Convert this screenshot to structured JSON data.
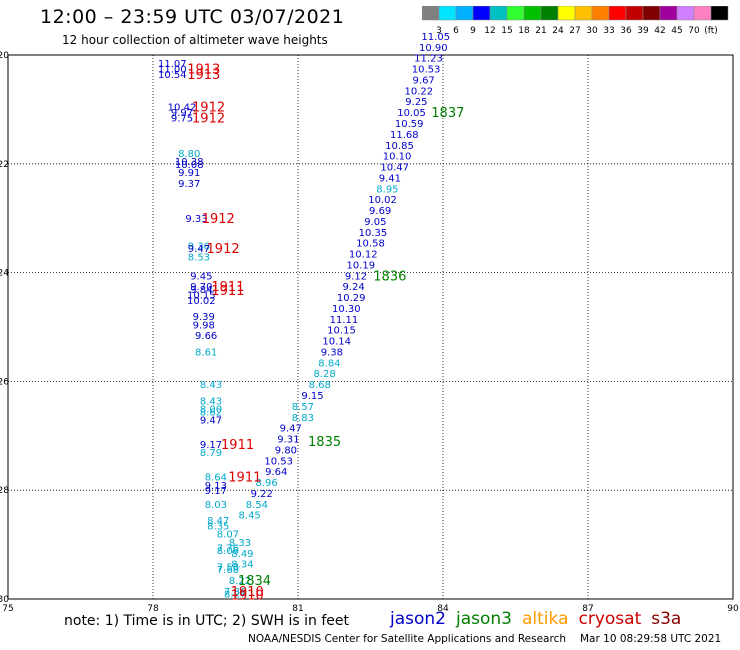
{
  "header": {
    "title": "12:00 – 23:59 UTC 03/07/2021",
    "subtitle": "12 hour collection of altimeter wave heights"
  },
  "colorbar": {
    "colors": [
      "#808080",
      "#00e5ff",
      "#00b0ff",
      "#0000ff",
      "#00c0c0",
      "#30ff30",
      "#00c000",
      "#008000",
      "#ffff00",
      "#ffc000",
      "#ff8000",
      "#ff0000",
      "#c00000",
      "#800000",
      "#a000a0",
      "#d080ff",
      "#ff80c0",
      "#000000"
    ],
    "labels": [
      "3",
      "6",
      "9",
      "12",
      "15",
      "18",
      "21",
      "24",
      "27",
      "30",
      "33",
      "36",
      "39",
      "42",
      "45",
      "70",
      "(ft)"
    ]
  },
  "footer": {
    "note": "note:  1) Time is in UTC;  2) SWH is in feet",
    "credit": "NOAA/NESDIS Center for Satellite Applications and Research",
    "timestamp": "Mar 10 08:29:58 UTC 2021"
  },
  "legend": [
    {
      "name": "jason2",
      "color": "#0000cc"
    },
    {
      "name": "jason3",
      "color": "#008000"
    },
    {
      "name": "altika",
      "color": "#ff9900"
    },
    {
      "name": "cryosat",
      "color": "#cc0000"
    },
    {
      "name": "s3a",
      "color": "#880000"
    }
  ],
  "chart_data": {
    "type": "scatter",
    "title": "12:00 – 23:59 UTC 03/07/2021",
    "subtitle": "12 hour collection of altimeter wave heights",
    "xlim": [
      75,
      90
    ],
    "ylim": [
      -30,
      -20
    ],
    "x_ticks": [
      "75",
      "78",
      "81",
      "84",
      "87",
      "90"
    ],
    "y_ticks": [
      "-20",
      "-22",
      "-24",
      "-26",
      "-28",
      "-30"
    ],
    "grid": true,
    "wave_heights": [
      {
        "x": 78.4,
        "y": -20.15,
        "v": "11.07",
        "c": "#0000cc"
      },
      {
        "x": 78.4,
        "y": -20.25,
        "v": "11.00",
        "c": "#0000cc"
      },
      {
        "x": 78.4,
        "y": -20.35,
        "v": "10.54",
        "c": "#0000cc"
      },
      {
        "x": 78.6,
        "y": -20.95,
        "v": "10.42",
        "c": "#0000cc"
      },
      {
        "x": 78.6,
        "y": -21.05,
        "v": "9.97",
        "c": "#0000cc"
      },
      {
        "x": 78.6,
        "y": -21.15,
        "v": "9.75",
        "c": "#0000cc"
      },
      {
        "x": 78.75,
        "y": -21.8,
        "v": "8.80",
        "c": "#00aacc"
      },
      {
        "x": 78.75,
        "y": -21.95,
        "v": "10.38",
        "c": "#0000cc"
      },
      {
        "x": 78.75,
        "y": -22.0,
        "v": "10.08",
        "c": "#0000cc"
      },
      {
        "x": 78.75,
        "y": -22.15,
        "v": "9.91",
        "c": "#0000cc"
      },
      {
        "x": 78.75,
        "y": -22.35,
        "v": "9.37",
        "c": "#0000cc"
      },
      {
        "x": 78.9,
        "y": -23.0,
        "v": "9.33",
        "c": "#0000cc"
      },
      {
        "x": 78.95,
        "y": -23.5,
        "v": "9.36",
        "c": "#00aacc"
      },
      {
        "x": 78.95,
        "y": -23.55,
        "v": "9.47",
        "c": "#0000cc"
      },
      {
        "x": 78.95,
        "y": -23.7,
        "v": "8.53",
        "c": "#00aacc"
      },
      {
        "x": 79.0,
        "y": -24.05,
        "v": "9.45",
        "c": "#0000cc"
      },
      {
        "x": 79.0,
        "y": -24.25,
        "v": "9.70",
        "c": "#0000cc"
      },
      {
        "x": 79.0,
        "y": -24.3,
        "v": "9.84",
        "c": "#0000cc"
      },
      {
        "x": 79.0,
        "y": -24.4,
        "v": "10.15",
        "c": "#0000cc"
      },
      {
        "x": 79.0,
        "y": -24.5,
        "v": "10.02",
        "c": "#0000cc"
      },
      {
        "x": 79.05,
        "y": -24.8,
        "v": "9.39",
        "c": "#0000cc"
      },
      {
        "x": 79.05,
        "y": -24.95,
        "v": "9.98",
        "c": "#0000cc"
      },
      {
        "x": 79.1,
        "y": -25.15,
        "v": "9.66",
        "c": "#0000cc"
      },
      {
        "x": 79.1,
        "y": -25.45,
        "v": "8.61",
        "c": "#00aacc"
      },
      {
        "x": 79.2,
        "y": -26.05,
        "v": "8.43",
        "c": "#00aacc"
      },
      {
        "x": 79.2,
        "y": -26.35,
        "v": "8.43",
        "c": "#00aacc"
      },
      {
        "x": 79.2,
        "y": -26.5,
        "v": "8.00",
        "c": "#00aacc"
      },
      {
        "x": 79.2,
        "y": -26.55,
        "v": "8.62",
        "c": "#00aacc"
      },
      {
        "x": 79.2,
        "y": -26.7,
        "v": "9.47",
        "c": "#0000cc"
      },
      {
        "x": 79.2,
        "y": -27.15,
        "v": "9.17",
        "c": "#0000cc"
      },
      {
        "x": 79.2,
        "y": -27.3,
        "v": "8.79",
        "c": "#00aacc"
      },
      {
        "x": 79.3,
        "y": -27.75,
        "v": "8.64",
        "c": "#00aacc"
      },
      {
        "x": 79.3,
        "y": -27.9,
        "v": "9.13",
        "c": "#0000cc"
      },
      {
        "x": 79.3,
        "y": -28.0,
        "v": "9.17",
        "c": "#0000cc"
      },
      {
        "x": 79.3,
        "y": -28.25,
        "v": "8.03",
        "c": "#00aacc"
      },
      {
        "x": 79.35,
        "y": -28.55,
        "v": "8.47",
        "c": "#00aacc"
      },
      {
        "x": 79.35,
        "y": -28.65,
        "v": "8.35",
        "c": "#00aacc"
      },
      {
        "x": 79.55,
        "y": -28.8,
        "v": "8.07",
        "c": "#00aacc"
      },
      {
        "x": 79.55,
        "y": -29.05,
        "v": "7.76",
        "c": "#00aacc"
      },
      {
        "x": 79.55,
        "y": -29.1,
        "v": "8.06",
        "c": "#00aacc"
      },
      {
        "x": 79.55,
        "y": -29.4,
        "v": "7.58",
        "c": "#00aacc"
      },
      {
        "x": 79.55,
        "y": -29.45,
        "v": "7.68",
        "c": "#00aacc"
      },
      {
        "x": 79.8,
        "y": -28.95,
        "v": "8.33",
        "c": "#00aacc"
      },
      {
        "x": 79.85,
        "y": -29.15,
        "v": "8.49",
        "c": "#00aacc"
      },
      {
        "x": 79.85,
        "y": -29.35,
        "v": "8.34",
        "c": "#00aacc"
      },
      {
        "x": 80.0,
        "y": -28.45,
        "v": "8.45",
        "c": "#00aacc"
      },
      {
        "x": 80.15,
        "y": -28.25,
        "v": "8.54",
        "c": "#00aacc"
      },
      {
        "x": 80.25,
        "y": -28.05,
        "v": "9.22",
        "c": "#0000cc"
      },
      {
        "x": 79.8,
        "y": -29.65,
        "v": "8.22",
        "c": "#00aacc"
      },
      {
        "x": 79.7,
        "y": -29.85,
        "v": "7.86",
        "c": "#00aacc"
      },
      {
        "x": 79.7,
        "y": -29.9,
        "v": "8.27",
        "c": "#00aacc"
      },
      {
        "x": 80.35,
        "y": -27.85,
        "v": "8.96",
        "c": "#00aacc"
      },
      {
        "x": 80.55,
        "y": -27.65,
        "v": "9.64",
        "c": "#0000cc"
      },
      {
        "x": 80.6,
        "y": -27.45,
        "v": "10.53",
        "c": "#0000cc"
      },
      {
        "x": 80.75,
        "y": -27.25,
        "v": "9.80",
        "c": "#0000cc"
      },
      {
        "x": 80.8,
        "y": -27.05,
        "v": "9.31",
        "c": "#0000cc"
      },
      {
        "x": 80.85,
        "y": -26.85,
        "v": "9.47",
        "c": "#0000cc"
      },
      {
        "x": 81.1,
        "y": -26.65,
        "v": "8.83",
        "c": "#00aacc"
      },
      {
        "x": 81.1,
        "y": -26.45,
        "v": "8.57",
        "c": "#00aacc"
      },
      {
        "x": 81.3,
        "y": -26.25,
        "v": "9.15",
        "c": "#0000cc"
      },
      {
        "x": 81.45,
        "y": -26.05,
        "v": "8.68",
        "c": "#00aacc"
      },
      {
        "x": 81.55,
        "y": -25.85,
        "v": "8.28",
        "c": "#00aacc"
      },
      {
        "x": 81.65,
        "y": -25.65,
        "v": "8.84",
        "c": "#00aacc"
      },
      {
        "x": 81.7,
        "y": -25.45,
        "v": "9.38",
        "c": "#0000cc"
      },
      {
        "x": 81.8,
        "y": -25.25,
        "v": "10.14",
        "c": "#0000cc"
      },
      {
        "x": 81.9,
        "y": -25.05,
        "v": "10.15",
        "c": "#0000cc"
      },
      {
        "x": 81.95,
        "y": -24.85,
        "v": "11.11",
        "c": "#0000cc"
      },
      {
        "x": 82.0,
        "y": -24.65,
        "v": "10.30",
        "c": "#0000cc"
      },
      {
        "x": 82.1,
        "y": -24.45,
        "v": "10.29",
        "c": "#0000cc"
      },
      {
        "x": 82.15,
        "y": -24.25,
        "v": "9.24",
        "c": "#0000cc"
      },
      {
        "x": 82.2,
        "y": -24.05,
        "v": "9.12",
        "c": "#0000cc"
      },
      {
        "x": 82.3,
        "y": -23.85,
        "v": "10.19",
        "c": "#0000cc"
      },
      {
        "x": 82.35,
        "y": -23.65,
        "v": "10.12",
        "c": "#0000cc"
      },
      {
        "x": 82.5,
        "y": -23.45,
        "v": "10.58",
        "c": "#0000cc"
      },
      {
        "x": 82.55,
        "y": -23.25,
        "v": "10.35",
        "c": "#0000cc"
      },
      {
        "x": 82.6,
        "y": -23.05,
        "v": "9.05",
        "c": "#0000cc"
      },
      {
        "x": 82.7,
        "y": -22.85,
        "v": "9.69",
        "c": "#0000cc"
      },
      {
        "x": 82.75,
        "y": -22.65,
        "v": "10.02",
        "c": "#0000cc"
      },
      {
        "x": 82.85,
        "y": -22.45,
        "v": "8.95",
        "c": "#00aacc"
      },
      {
        "x": 82.9,
        "y": -22.25,
        "v": "9.41",
        "c": "#0000cc"
      },
      {
        "x": 83.0,
        "y": -22.05,
        "v": "10.47",
        "c": "#0000cc"
      },
      {
        "x": 83.05,
        "y": -21.85,
        "v": "10.10",
        "c": "#0000cc"
      },
      {
        "x": 83.1,
        "y": -21.65,
        "v": "10.85",
        "c": "#0000cc"
      },
      {
        "x": 83.2,
        "y": -21.45,
        "v": "11.68",
        "c": "#0000cc"
      },
      {
        "x": 83.3,
        "y": -21.25,
        "v": "10.59",
        "c": "#0000cc"
      },
      {
        "x": 83.35,
        "y": -21.05,
        "v": "10.05",
        "c": "#0000cc"
      },
      {
        "x": 83.45,
        "y": -20.85,
        "v": "9.25",
        "c": "#0000cc"
      },
      {
        "x": 83.5,
        "y": -20.65,
        "v": "10.22",
        "c": "#0000cc"
      },
      {
        "x": 83.6,
        "y": -20.45,
        "v": "9.67",
        "c": "#0000cc"
      },
      {
        "x": 83.65,
        "y": -20.25,
        "v": "10.53",
        "c": "#0000cc"
      },
      {
        "x": 83.7,
        "y": -20.05,
        "v": "11.23",
        "c": "#0000cc"
      },
      {
        "x": 83.8,
        "y": -19.85,
        "v": "10.90",
        "c": "#0000cc"
      },
      {
        "x": 83.85,
        "y": -19.65,
        "v": "11.05",
        "c": "#0000cc"
      }
    ],
    "time_labels": [
      {
        "x": 79.05,
        "y": -20.25,
        "v": "1913",
        "c": "#dd0000"
      },
      {
        "x": 79.05,
        "y": -20.35,
        "v": "1913",
        "c": "#dd0000"
      },
      {
        "x": 79.15,
        "y": -20.95,
        "v": "1912",
        "c": "#dd0000"
      },
      {
        "x": 79.15,
        "y": -21.15,
        "v": "1912",
        "c": "#dd0000"
      },
      {
        "x": 79.35,
        "y": -23.0,
        "v": "1912",
        "c": "#dd0000"
      },
      {
        "x": 79.45,
        "y": -23.55,
        "v": "1912",
        "c": "#dd0000"
      },
      {
        "x": 79.55,
        "y": -24.25,
        "v": "1911",
        "c": "#dd0000"
      },
      {
        "x": 79.55,
        "y": -24.32,
        "v": "1911",
        "c": "#dd0000"
      },
      {
        "x": 79.75,
        "y": -27.15,
        "v": "1911",
        "c": "#dd0000"
      },
      {
        "x": 79.9,
        "y": -27.75,
        "v": "1911",
        "c": "#dd0000"
      },
      {
        "x": 79.95,
        "y": -29.85,
        "v": "1910",
        "c": "#dd0000"
      },
      {
        "x": 79.95,
        "y": -29.92,
        "v": "1910",
        "c": "#dd0000"
      },
      {
        "x": 80.1,
        "y": -29.65,
        "v": "1834",
        "c": "#008000"
      },
      {
        "x": 81.55,
        "y": -27.1,
        "v": "1835",
        "c": "#008000"
      },
      {
        "x": 82.9,
        "y": -24.05,
        "v": "1836",
        "c": "#008000"
      },
      {
        "x": 84.1,
        "y": -21.05,
        "v": "1837",
        "c": "#008000"
      }
    ]
  }
}
